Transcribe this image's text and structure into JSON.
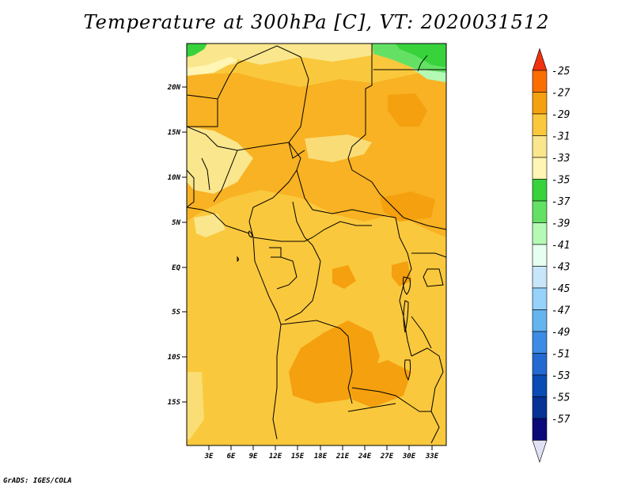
{
  "title": "Temperature at 300hPa [C], VT: 2020031512",
  "credit": "GrADS: IGES/COLA",
  "map": {
    "lat_ticks": [
      "20N",
      "15N",
      "10N",
      "5N",
      "EQ",
      "5S",
      "10S",
      "15S"
    ],
    "lon_ticks": [
      "3E",
      "6E",
      "9E",
      "12E",
      "15E",
      "18E",
      "21E",
      "24E",
      "27E",
      "30E",
      "33E"
    ]
  },
  "colorbar": {
    "labels": [
      "-25",
      "-27",
      "-29",
      "-31",
      "-33",
      "-35",
      "-37",
      "-39",
      "-41",
      "-43",
      "-45",
      "-47",
      "-49",
      "-51",
      "-53",
      "-55",
      "-57"
    ],
    "colors": [
      "#f0320f",
      "#fa6e00",
      "#f5a00f",
      "#fac83c",
      "#fae68c",
      "#fff5b4",
      "#37d23c",
      "#64e164",
      "#b4fab4",
      "#e6fff0",
      "#c8e6fa",
      "#96d2fa",
      "#64b4f0",
      "#3c8ce6",
      "#2369d2",
      "#0a4bb4",
      "#073296",
      "#0a0a78",
      "#e1e1f5"
    ]
  }
}
